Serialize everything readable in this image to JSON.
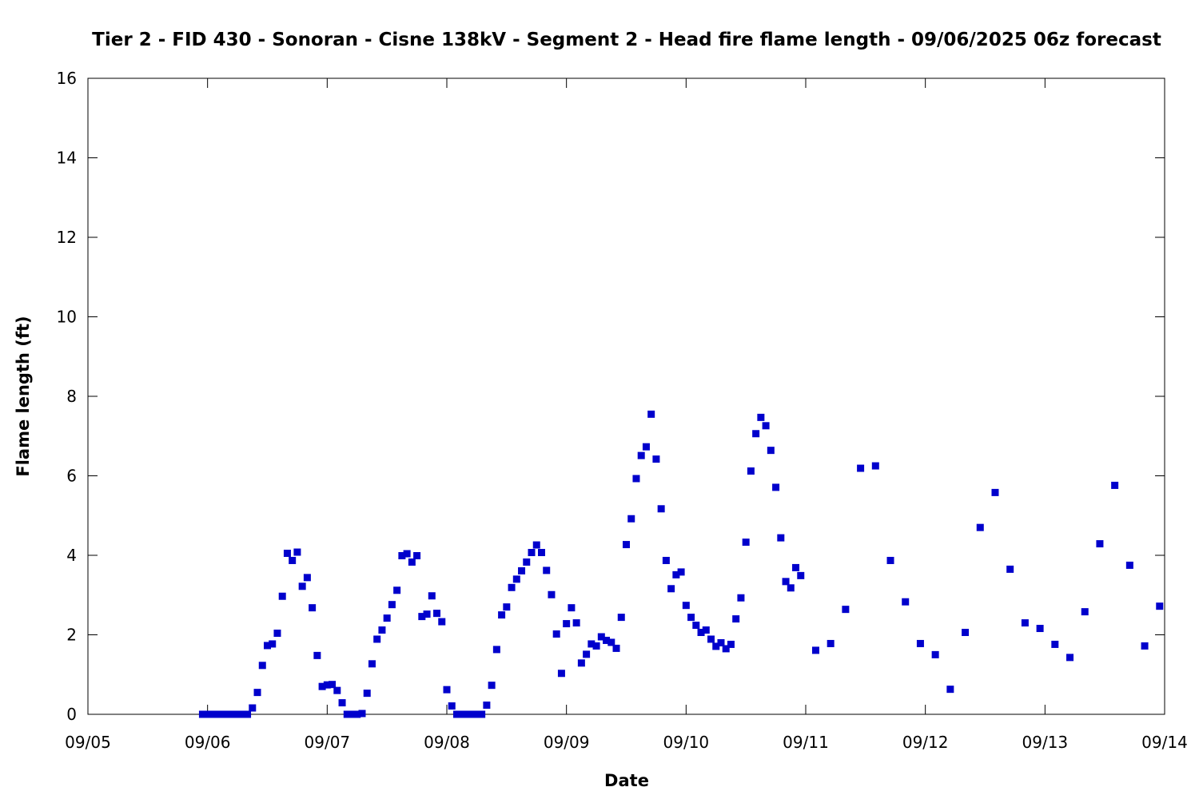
{
  "chart_data": {
    "type": "scatter",
    "title": "Tier 2 - FID 430 - Sonoran - Cisne 138kV - Segment 2 - Head fire flame length - 09/06/2025 06z forecast",
    "xlabel": "Date",
    "ylabel": "Flame length (ft)",
    "xlim": [
      "09/05",
      "09/14"
    ],
    "ylim": [
      0,
      16
    ],
    "x_ticks": [
      "09/05",
      "09/06",
      "09/07",
      "09/08",
      "09/09",
      "09/10",
      "09/11",
      "09/12",
      "09/13",
      "09/14"
    ],
    "y_ticks": [
      0,
      2,
      4,
      6,
      8,
      10,
      12,
      14,
      16
    ],
    "grid": false,
    "legend": "none",
    "marker_color": "#0000cc",
    "series": [
      {
        "points": [
          [
            "09/05 23:00",
            0.0
          ],
          [
            "09/06 00:00",
            0.0
          ],
          [
            "09/06 01:00",
            0.0
          ],
          [
            "09/06 02:00",
            0.0
          ],
          [
            "09/06 03:00",
            0.0
          ],
          [
            "09/06 04:00",
            0.0
          ],
          [
            "09/06 05:00",
            0.0
          ],
          [
            "09/06 06:00",
            0.0
          ],
          [
            "09/06 07:00",
            0.0
          ],
          [
            "09/06 08:00",
            0.0
          ],
          [
            "09/06 09:00",
            0.16
          ],
          [
            "09/06 10:00",
            0.55
          ],
          [
            "09/06 11:00",
            1.23
          ],
          [
            "09/06 12:00",
            1.73
          ],
          [
            "09/06 13:00",
            1.77
          ],
          [
            "09/06 14:00",
            2.04
          ],
          [
            "09/06 15:00",
            2.97
          ],
          [
            "09/06 16:00",
            4.05
          ],
          [
            "09/06 17:00",
            3.87
          ],
          [
            "09/06 18:00",
            4.08
          ],
          [
            "09/06 19:00",
            3.22
          ],
          [
            "09/06 20:00",
            3.44
          ],
          [
            "09/06 21:00",
            2.68
          ],
          [
            "09/06 22:00",
            1.48
          ],
          [
            "09/06 23:00",
            0.7
          ],
          [
            "09/07 00:00",
            0.74
          ],
          [
            "09/07 01:00",
            0.75
          ],
          [
            "09/07 02:00",
            0.6
          ],
          [
            "09/07 03:00",
            0.29
          ],
          [
            "09/07 04:00",
            0.0
          ],
          [
            "09/07 05:00",
            0.0
          ],
          [
            "09/07 06:00",
            0.0
          ],
          [
            "09/07 07:00",
            0.02
          ],
          [
            "09/07 08:00",
            0.53
          ],
          [
            "09/07 09:00",
            1.27
          ],
          [
            "09/07 10:00",
            1.89
          ],
          [
            "09/07 11:00",
            2.12
          ],
          [
            "09/07 12:00",
            2.42
          ],
          [
            "09/07 13:00",
            2.76
          ],
          [
            "09/07 14:00",
            3.12
          ],
          [
            "09/07 15:00",
            3.99
          ],
          [
            "09/07 16:00",
            4.04
          ],
          [
            "09/07 17:00",
            3.83
          ],
          [
            "09/07 18:00",
            3.99
          ],
          [
            "09/07 19:00",
            2.46
          ],
          [
            "09/07 20:00",
            2.52
          ],
          [
            "09/07 21:00",
            2.98
          ],
          [
            "09/07 22:00",
            2.54
          ],
          [
            "09/07 23:00",
            2.33
          ],
          [
            "09/08 00:00",
            0.62
          ],
          [
            "09/08 01:00",
            0.21
          ],
          [
            "09/08 02:00",
            0.0
          ],
          [
            "09/08 03:00",
            0.0
          ],
          [
            "09/08 04:00",
            0.0
          ],
          [
            "09/08 05:00",
            0.0
          ],
          [
            "09/08 06:00",
            0.0
          ],
          [
            "09/08 07:00",
            0.0
          ],
          [
            "09/08 08:00",
            0.23
          ],
          [
            "09/08 09:00",
            0.73
          ],
          [
            "09/08 10:00",
            1.63
          ],
          [
            "09/08 11:00",
            2.5
          ],
          [
            "09/08 12:00",
            2.7
          ],
          [
            "09/08 13:00",
            3.19
          ],
          [
            "09/08 14:00",
            3.4
          ],
          [
            "09/08 15:00",
            3.61
          ],
          [
            "09/08 16:00",
            3.83
          ],
          [
            "09/08 17:00",
            4.07
          ],
          [
            "09/08 18:00",
            4.26
          ],
          [
            "09/08 19:00",
            4.07
          ],
          [
            "09/08 20:00",
            3.62
          ],
          [
            "09/08 21:00",
            3.01
          ],
          [
            "09/08 22:00",
            2.02
          ],
          [
            "09/08 23:00",
            1.03
          ],
          [
            "09/09 00:00",
            2.28
          ],
          [
            "09/09 01:00",
            2.68
          ],
          [
            "09/09 02:00",
            2.3
          ],
          [
            "09/09 03:00",
            1.29
          ],
          [
            "09/09 04:00",
            1.51
          ],
          [
            "09/09 05:00",
            1.77
          ],
          [
            "09/09 06:00",
            1.72
          ],
          [
            "09/09 07:00",
            1.95
          ],
          [
            "09/09 08:00",
            1.86
          ],
          [
            "09/09 09:00",
            1.81
          ],
          [
            "09/09 10:00",
            1.66
          ],
          [
            "09/09 11:00",
            2.44
          ],
          [
            "09/09 12:00",
            4.27
          ],
          [
            "09/09 13:00",
            4.92
          ],
          [
            "09/09 14:00",
            5.93
          ],
          [
            "09/09 15:00",
            6.51
          ],
          [
            "09/09 16:00",
            6.73
          ],
          [
            "09/09 17:00",
            7.55
          ],
          [
            "09/09 18:00",
            6.42
          ],
          [
            "09/09 19:00",
            5.17
          ],
          [
            "09/09 20:00",
            3.87
          ],
          [
            "09/09 21:00",
            3.16
          ],
          [
            "09/09 22:00",
            3.51
          ],
          [
            "09/09 23:00",
            3.58
          ],
          [
            "09/10 00:00",
            2.74
          ],
          [
            "09/10 01:00",
            2.44
          ],
          [
            "09/10 02:00",
            2.24
          ],
          [
            "09/10 03:00",
            2.06
          ],
          [
            "09/10 04:00",
            2.12
          ],
          [
            "09/10 05:00",
            1.89
          ],
          [
            "09/10 06:00",
            1.71
          ],
          [
            "09/10 07:00",
            1.8
          ],
          [
            "09/10 08:00",
            1.65
          ],
          [
            "09/10 09:00",
            1.76
          ],
          [
            "09/10 10:00",
            2.4
          ],
          [
            "09/10 11:00",
            2.93
          ],
          [
            "09/10 12:00",
            4.33
          ],
          [
            "09/10 13:00",
            6.12
          ],
          [
            "09/10 14:00",
            7.06
          ],
          [
            "09/10 15:00",
            7.47
          ],
          [
            "09/10 16:00",
            7.26
          ],
          [
            "09/10 17:00",
            6.64
          ],
          [
            "09/10 18:00",
            5.71
          ],
          [
            "09/10 19:00",
            4.44
          ],
          [
            "09/10 20:00",
            3.34
          ],
          [
            "09/10 21:00",
            3.18
          ],
          [
            "09/10 22:00",
            3.69
          ],
          [
            "09/10 23:00",
            3.49
          ],
          [
            "09/11 02:00",
            1.61
          ],
          [
            "09/11 05:00",
            1.78
          ],
          [
            "09/11 08:00",
            2.64
          ],
          [
            "09/11 11:00",
            6.19
          ],
          [
            "09/11 14:00",
            6.25
          ],
          [
            "09/11 17:00",
            3.87
          ],
          [
            "09/11 20:00",
            2.83
          ],
          [
            "09/11 23:00",
            1.78
          ],
          [
            "09/12 02:00",
            1.5
          ],
          [
            "09/12 05:00",
            0.63
          ],
          [
            "09/12 08:00",
            2.06
          ],
          [
            "09/12 11:00",
            4.7
          ],
          [
            "09/12 14:00",
            5.58
          ],
          [
            "09/12 17:00",
            3.65
          ],
          [
            "09/12 20:00",
            2.3
          ],
          [
            "09/12 23:00",
            2.16
          ],
          [
            "09/13 02:00",
            1.76
          ],
          [
            "09/13 05:00",
            1.43
          ],
          [
            "09/13 08:00",
            2.58
          ],
          [
            "09/13 11:00",
            4.29
          ],
          [
            "09/13 14:00",
            5.76
          ],
          [
            "09/13 17:00",
            3.75
          ],
          [
            "09/13 20:00",
            1.72
          ],
          [
            "09/13 23:00",
            2.72
          ]
        ]
      }
    ]
  }
}
